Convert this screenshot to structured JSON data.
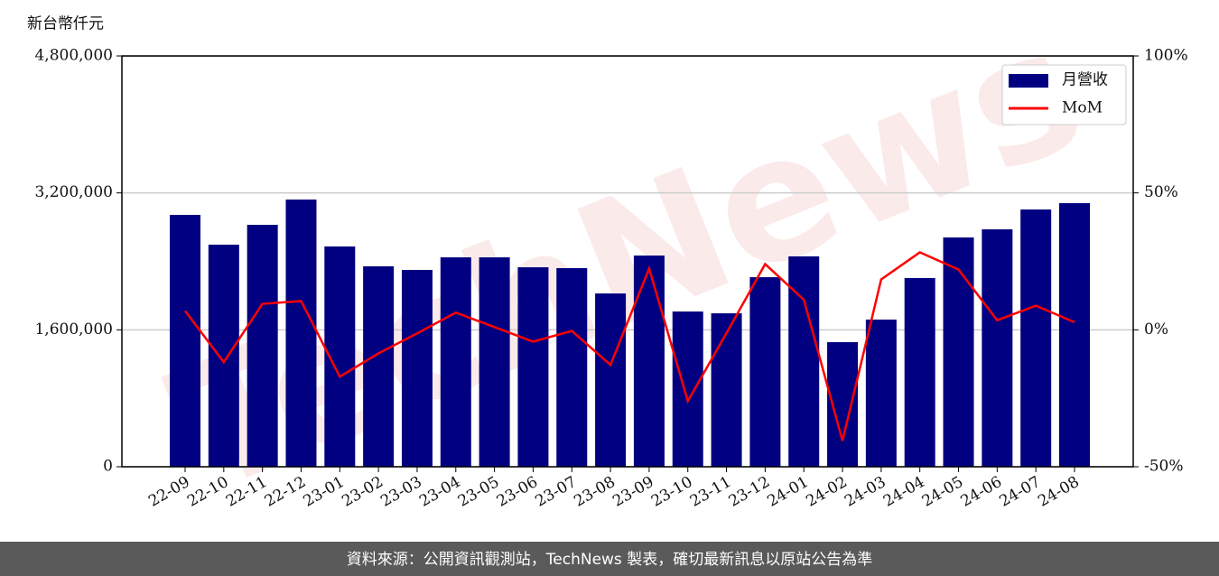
{
  "chart_data": {
    "type": "bar_line",
    "y_label": "新台幣仟元",
    "watermark": "TechNews",
    "footer": "資料來源：公開資訊觀測站，TechNews 製表，確切最新訊息以原站公告為準",
    "categories": [
      "22-09",
      "22-10",
      "22-11",
      "22-12",
      "23-01",
      "23-02",
      "23-03",
      "23-04",
      "23-05",
      "23-06",
      "23-07",
      "23-08",
      "23-09",
      "23-10",
      "23-11",
      "23-12",
      "24-01",
      "24-02",
      "24-03",
      "24-04",
      "24-05",
      "24-06",
      "24-07",
      "24-08"
    ],
    "series": [
      {
        "name": "月營收",
        "color": "#000080",
        "kind": "bar",
        "values": [
          2943000,
          2595000,
          2827000,
          3122000,
          2574000,
          2342000,
          2300000,
          2447000,
          2447000,
          2331000,
          2321000,
          2025000,
          2468000,
          1814000,
          1793000,
          2215000,
          2458000,
          1456000,
          1720000,
          2205000,
          2679000,
          2774000,
          3006000,
          3080000
        ]
      },
      {
        "name": "MoM",
        "color": "#ff0000",
        "kind": "line",
        "axis": "y2",
        "values": [
          6.9,
          -11.8,
          9.5,
          10.5,
          -17.1,
          -8.6,
          -1.3,
          6.3,
          1.0,
          -4.3,
          -0.4,
          -12.8,
          22.4,
          -26.0,
          -1.2,
          24.0,
          11.0,
          -40.5,
          18.4,
          28.3,
          22.0,
          3.5,
          8.8,
          2.8
        ]
      }
    ],
    "ylim": [
      0,
      4800000
    ],
    "yticks": [
      0,
      {
        "value": 1600000,
        "label": "1,600,000"
      },
      {
        "value": 3200000,
        "label": "3,200,000"
      },
      {
        "value": 4800000,
        "label": "4,800,000"
      }
    ],
    "y2lim": [
      -50,
      100
    ],
    "y2ticks": [
      {
        "value": -50,
        "label": "-50%"
      },
      {
        "value": 0,
        "label": "0%"
      },
      {
        "value": 50,
        "label": "50%"
      },
      {
        "value": 100,
        "label": "100%"
      }
    ],
    "grid": true,
    "legend": "upper right"
  }
}
